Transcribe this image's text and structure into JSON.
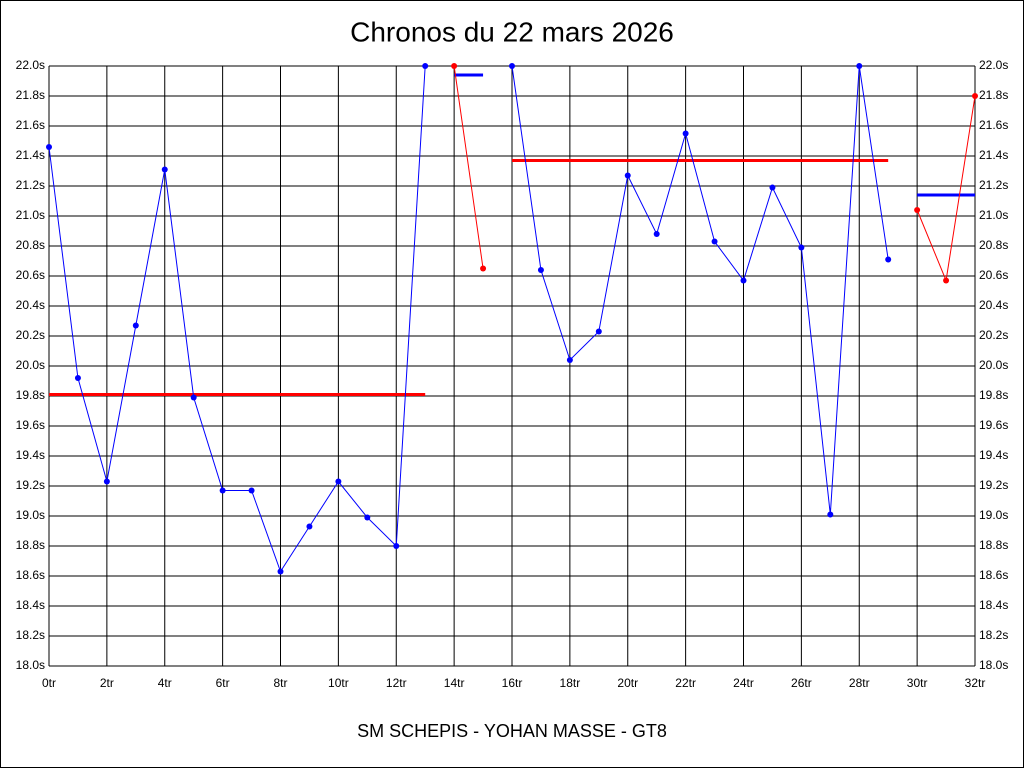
{
  "chart_data": {
    "type": "line",
    "title": "Chronos du 22 mars 2026",
    "subtitle": "SM SCHEPIS - YOHAN MASSE - GT8",
    "x": [
      0,
      1,
      2,
      3,
      4,
      5,
      6,
      7,
      8,
      9,
      10,
      11,
      12,
      13,
      14,
      15,
      16,
      17,
      18,
      19,
      20,
      21,
      22,
      23,
      24,
      25,
      26,
      27,
      28,
      29,
      30,
      31,
      32
    ],
    "series": [
      {
        "color": "#0000ff",
        "values": [
          21.46,
          19.92,
          19.23,
          20.27,
          21.31,
          19.79,
          19.17,
          19.17,
          18.63,
          18.93,
          19.23,
          18.99,
          18.8,
          22.0,
          null,
          null,
          22.0,
          20.64,
          20.04,
          20.23,
          21.27,
          20.88,
          21.55,
          20.83,
          20.57,
          21.19,
          20.79,
          19.01,
          22.0,
          20.71,
          null,
          null,
          null
        ]
      },
      {
        "color": "#ff0000",
        "values": [
          null,
          null,
          null,
          null,
          null,
          null,
          null,
          null,
          null,
          null,
          null,
          null,
          null,
          null,
          22.0,
          20.65,
          null,
          null,
          null,
          null,
          null,
          null,
          null,
          null,
          null,
          null,
          null,
          null,
          null,
          null,
          21.04,
          20.57,
          21.8
        ]
      }
    ],
    "reference_lines": [
      {
        "from": 0,
        "to": 13,
        "value": 19.81,
        "color": "#ff0000"
      },
      {
        "from": 14,
        "to": 15,
        "value": 21.94,
        "color": "#0000ff"
      },
      {
        "from": 16,
        "to": 29,
        "value": 21.37,
        "color": "#ff0000"
      },
      {
        "from": 30,
        "to": 32,
        "value": 21.14,
        "color": "#0000ff"
      }
    ],
    "xlim": [
      0,
      32
    ],
    "ylim": [
      18,
      22
    ],
    "xticks": [
      {
        "value": 0,
        "label": "0tr"
      },
      {
        "value": 2,
        "label": "2tr"
      },
      {
        "value": 4,
        "label": "4tr"
      },
      {
        "value": 6,
        "label": "6tr"
      },
      {
        "value": 8,
        "label": "8tr"
      },
      {
        "value": 10,
        "label": "10tr"
      },
      {
        "value": 12,
        "label": "12tr"
      },
      {
        "value": 14,
        "label": "14tr"
      },
      {
        "value": 16,
        "label": "16tr"
      },
      {
        "value": 18,
        "label": "18tr"
      },
      {
        "value": 20,
        "label": "20tr"
      },
      {
        "value": 22,
        "label": "22tr"
      },
      {
        "value": 24,
        "label": "24tr"
      },
      {
        "value": 26,
        "label": "26tr"
      },
      {
        "value": 28,
        "label": "28tr"
      },
      {
        "value": 30,
        "label": "30tr"
      },
      {
        "value": 32,
        "label": "32tr"
      }
    ],
    "yticks": [
      {
        "value": 18.0,
        "label": "18.0s"
      },
      {
        "value": 18.2,
        "label": "18.2s"
      },
      {
        "value": 18.4,
        "label": "18.4s"
      },
      {
        "value": 18.6,
        "label": "18.6s"
      },
      {
        "value": 18.8,
        "label": "18.8s"
      },
      {
        "value": 19.0,
        "label": "19.0s"
      },
      {
        "value": 19.2,
        "label": "19.2s"
      },
      {
        "value": 19.4,
        "label": "19.4s"
      },
      {
        "value": 19.6,
        "label": "19.6s"
      },
      {
        "value": 19.8,
        "label": "19.8s"
      },
      {
        "value": 20.0,
        "label": "20.0s"
      },
      {
        "value": 20.2,
        "label": "20.2s"
      },
      {
        "value": 20.4,
        "label": "20.4s"
      },
      {
        "value": 20.6,
        "label": "20.6s"
      },
      {
        "value": 20.8,
        "label": "20.8s"
      },
      {
        "value": 21.0,
        "label": "21.0s"
      },
      {
        "value": 21.2,
        "label": "21.2s"
      },
      {
        "value": 21.4,
        "label": "21.4s"
      },
      {
        "value": 21.6,
        "label": "21.6s"
      },
      {
        "value": 21.8,
        "label": "21.8s"
      },
      {
        "value": 22.0,
        "label": "22.0s"
      }
    ],
    "grid": true
  }
}
